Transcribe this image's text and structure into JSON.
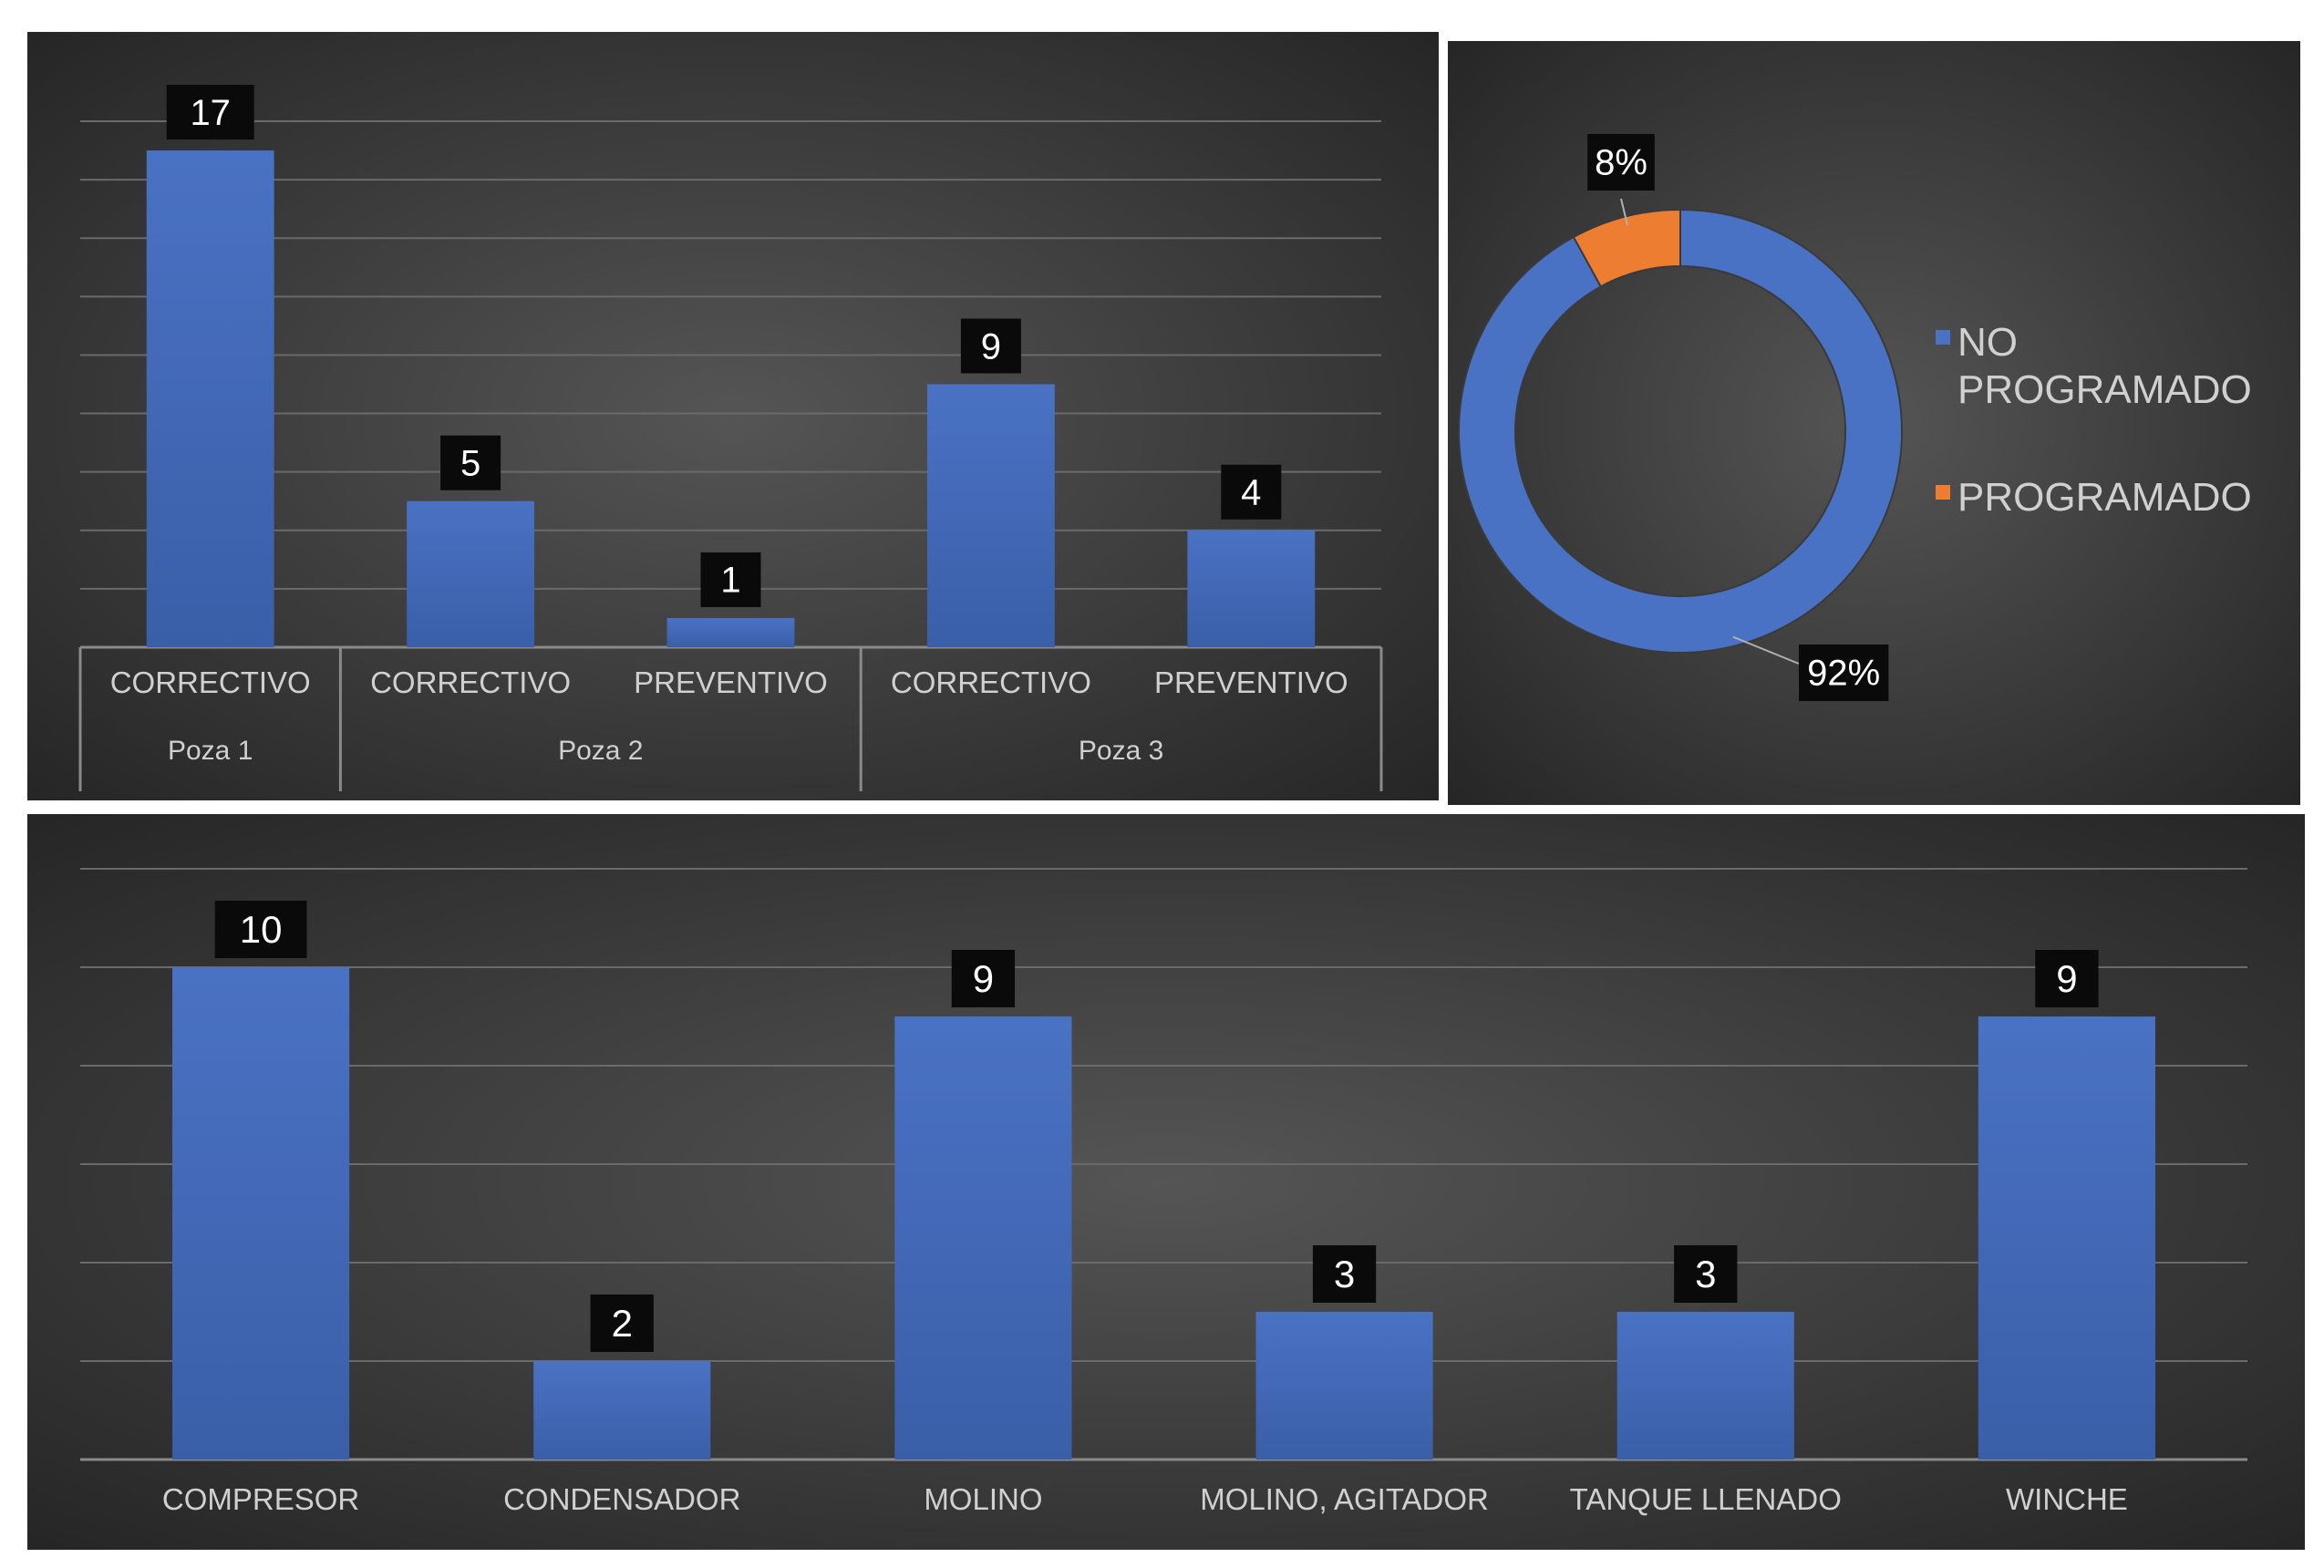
{
  "colors": {
    "bar": "#4a72c4",
    "bar_dark": "#3a5fa8",
    "bg_center": "#555555",
    "bg_edge": "#262626",
    "grid": "#6a6a6a",
    "axis_text": "#d0d0d0",
    "label_bg": "#0a0a0a",
    "label_text": "#ffffff",
    "donut_blue": "#4a72c4",
    "donut_orange": "#ed7d31"
  },
  "chart_data": [
    {
      "type": "bar",
      "groups": [
        {
          "name": "Poza 1",
          "categories": [
            "CORRECTIVO"
          ],
          "values": [
            17
          ]
        },
        {
          "name": "Poza 2",
          "categories": [
            "CORRECTIVO",
            "PREVENTIVO"
          ],
          "values": [
            5,
            1
          ]
        },
        {
          "name": "Poza 3",
          "categories": [
            "CORRECTIVO",
            "PREVENTIVO"
          ],
          "values": [
            9,
            4
          ]
        }
      ],
      "ylim": [
        0,
        18
      ],
      "grid": true,
      "data_labels": true
    },
    {
      "type": "pie",
      "donut": true,
      "slices": [
        {
          "name": "NO PROGRAMADO",
          "value": 92,
          "label": "92%"
        },
        {
          "name": "PROGRAMADO",
          "value": 8,
          "label": "8%"
        }
      ],
      "legend": "right"
    },
    {
      "type": "bar",
      "categories": [
        "COMPRESOR",
        "CONDENSADOR",
        "MOLINO",
        "MOLINO, AGITADOR",
        "TANQUE LLENADO",
        "WINCHE"
      ],
      "values": [
        10,
        2,
        9,
        3,
        3,
        9
      ],
      "ylim": [
        0,
        12
      ],
      "grid": true,
      "data_labels": true
    }
  ]
}
